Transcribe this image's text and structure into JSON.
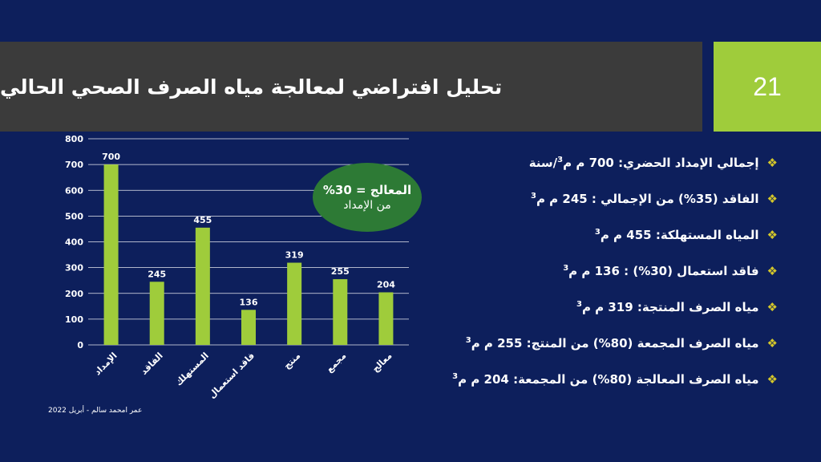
{
  "slide": {
    "title": "تحليل افتراضي لمعالجة مياه الصرف الصحي الحالي",
    "number": "21",
    "footer": "عمر امحمد سالم - أبريل 2022",
    "colors": {
      "background": "#0d1f5c",
      "title_bar": "#3b3b3b",
      "accent": "#9fcc3b",
      "callout": "#2d7a35",
      "bullet_icon": "#d4c72a"
    }
  },
  "callout": {
    "line1": "المعالج = 30%",
    "line2": "من الإمداد"
  },
  "bullets": [
    {
      "icon": "four-diamond-bullet-icon",
      "pre": "إجمالي الإمداد الحضري: 700 م م",
      "sup": "3",
      "post": "/سنة"
    },
    {
      "icon": "four-diamond-bullet-icon",
      "pre": "الفاقد (35%) من الإجمالي : 245 م م",
      "sup": "3",
      "post": ""
    },
    {
      "icon": "four-diamond-bullet-icon",
      "pre": "المياه المستهلكة: 455 م م",
      "sup": "3",
      "post": ""
    },
    {
      "icon": "four-diamond-bullet-icon",
      "pre": "فاقد استعمال (30%) : 136 م م",
      "sup": "3",
      "post": ""
    },
    {
      "icon": "four-diamond-bullet-icon",
      "pre": "مياه الصرف المنتجة: 319 م م",
      "sup": "3",
      "post": ""
    },
    {
      "icon": "four-diamond-bullet-icon",
      "pre": "مياه الصرف المجمعة (80%) من المنتج: 255 م م",
      "sup": "3",
      "post": ""
    },
    {
      "icon": "four-diamond-bullet-icon",
      "pre": "مياه الصرف المعالجة (80%) من المجمعة: 204 م م",
      "sup": "3",
      "post": ""
    }
  ],
  "chart_data": {
    "type": "bar",
    "categories": [
      "الإمداد",
      "الفاقد",
      "المستهلك",
      "فاقد استعمال",
      "منتج",
      "مجمع",
      "معالج"
    ],
    "values": [
      700,
      245,
      455,
      136,
      319,
      255,
      204
    ],
    "data_labels": [
      "700",
      "245",
      "455",
      "136",
      "319",
      "255",
      "204"
    ],
    "ylim": [
      0,
      800
    ],
    "yticks": [
      0,
      100,
      200,
      300,
      400,
      500,
      600,
      700,
      800
    ],
    "grid": true,
    "bar_color": "#9fcc3b",
    "grid_color": "#ffffff",
    "title": "",
    "xlabel": "",
    "ylabel": ""
  }
}
